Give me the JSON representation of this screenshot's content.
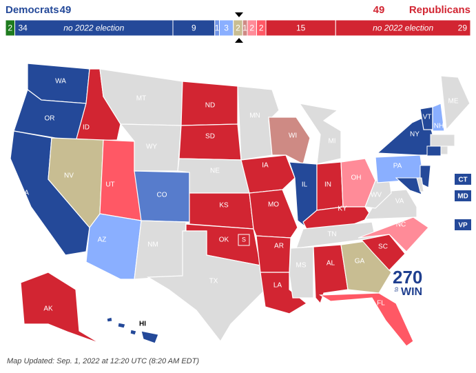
{
  "header": {
    "dem_label": "Democrats",
    "dem_total": 49,
    "rep_label": "Republicans",
    "rep_total": 49
  },
  "bar": {
    "segments": [
      {
        "value": 2,
        "color": "#1e7b1e"
      },
      {
        "value": 34,
        "color": "#244999",
        "note": "no 2022 election"
      },
      {
        "value": 9,
        "color": "#244999"
      },
      {
        "value": 1,
        "color": "#6f93e6"
      },
      {
        "value": 3,
        "color": "#8aafff"
      },
      {
        "value": 2,
        "color": "#c8bd92"
      },
      {
        "value": 1,
        "color": "#ce8a84"
      },
      {
        "value": 2,
        "color": "#ff8b98"
      },
      {
        "value": 2,
        "color": "#ff5865"
      },
      {
        "value": 15,
        "color": "#d22532"
      },
      {
        "value": 29,
        "color": "#d22532",
        "note": "no 2022 election"
      }
    ]
  },
  "states": [
    {
      "label": "WA",
      "color": "#244999"
    },
    {
      "label": "OR",
      "color": "#244999"
    },
    {
      "label": "CA",
      "color": "#244999"
    },
    {
      "label": "ID",
      "color": "#d22532"
    },
    {
      "label": "NV",
      "color": "#c8bd92"
    },
    {
      "label": "UT",
      "color": "#ff5865"
    },
    {
      "label": "AZ",
      "color": "#8aafff"
    },
    {
      "label": "MT",
      "color": "#dcdcdc"
    },
    {
      "label": "WY",
      "color": "#dcdcdc"
    },
    {
      "label": "CO",
      "color": "#577ccc"
    },
    {
      "label": "NM",
      "color": "#dcdcdc"
    },
    {
      "label": "ND",
      "color": "#d22532"
    },
    {
      "label": "SD",
      "color": "#d22532"
    },
    {
      "label": "NE",
      "color": "#dcdcdc"
    },
    {
      "label": "KS",
      "color": "#d22532"
    },
    {
      "label": "OK",
      "color": "#d22532"
    },
    {
      "label": "TX",
      "color": "#dcdcdc"
    },
    {
      "label": "MN",
      "color": "#dcdcdc"
    },
    {
      "label": "IA",
      "color": "#d22532"
    },
    {
      "label": "MO",
      "color": "#d22532"
    },
    {
      "label": "AR",
      "color": "#d22532"
    },
    {
      "label": "LA",
      "color": "#d22532"
    },
    {
      "label": "WI",
      "color": "#ce8a84"
    },
    {
      "label": "IL",
      "color": "#244999"
    },
    {
      "label": "MI",
      "color": "#dcdcdc"
    },
    {
      "label": "IN",
      "color": "#d22532"
    },
    {
      "label": "OH",
      "color": "#ff8b98"
    },
    {
      "label": "KY",
      "color": "#d22532"
    },
    {
      "label": "TN",
      "color": "#dcdcdc"
    },
    {
      "label": "MS",
      "color": "#dcdcdc"
    },
    {
      "label": "AL",
      "color": "#d22532"
    },
    {
      "label": "GA",
      "color": "#c8bd92"
    },
    {
      "label": "FL",
      "color": "#ff5865"
    },
    {
      "label": "SC",
      "color": "#d22532"
    },
    {
      "label": "NC",
      "color": "#ff8b98"
    },
    {
      "label": "VA",
      "color": "#dcdcdc"
    },
    {
      "label": "WV",
      "color": "#dcdcdc"
    },
    {
      "label": "PA",
      "color": "#8aafff"
    },
    {
      "label": "NY",
      "color": "#244999"
    },
    {
      "label": "VT",
      "color": "#244999"
    },
    {
      "label": "NH",
      "color": "#8aafff"
    },
    {
      "label": "ME",
      "color": "#dcdcdc"
    },
    {
      "label": "AK",
      "color": "#d22532"
    },
    {
      "label": "HI",
      "color": "#244999"
    }
  ],
  "special_marker": "S",
  "side_labels": [
    "CT",
    "MD",
    "VP"
  ],
  "logo": {
    "number": "270",
    "to": "to",
    "win": "WIN"
  },
  "footer": "Map Updated: Sep. 1, 2022 at 12:20 UTC (8:20 AM EDT)"
}
